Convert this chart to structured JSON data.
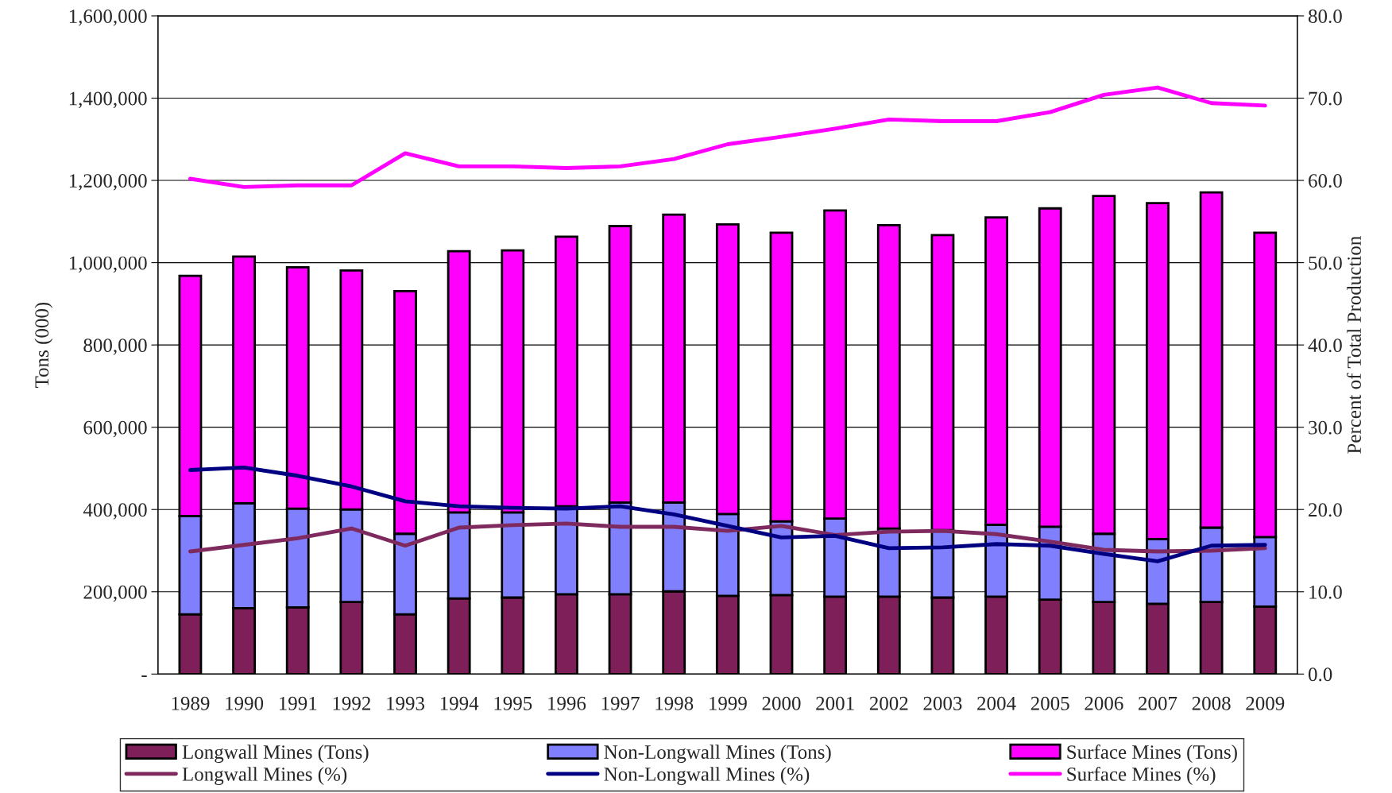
{
  "chart_data": {
    "type": "bar",
    "stacked": true,
    "ylabel": "Tons (000)",
    "y2label": "Percent of Total Production",
    "categories": [
      "1989",
      "1990",
      "1991",
      "1992",
      "1993",
      "1994",
      "1995",
      "1996",
      "1997",
      "1998",
      "1999",
      "2000",
      "2001",
      "2002",
      "2003",
      "2004",
      "2005",
      "2006",
      "2007",
      "2008",
      "2009"
    ],
    "series": [
      {
        "name": "Longwall Mines (Tons)",
        "color": "#7f1f5a",
        "values": [
          145000,
          160000,
          162000,
          175000,
          145000,
          184000,
          186000,
          194000,
          194000,
          201000,
          190000,
          192000,
          188000,
          188000,
          186000,
          188000,
          181000,
          175000,
          171000,
          175000,
          164000
        ]
      },
      {
        "name": "Non-Longwall Mines (Tons)",
        "color": "#8080ff",
        "values": [
          239000,
          255000,
          240000,
          225000,
          196000,
          209000,
          207000,
          214000,
          223000,
          216000,
          199000,
          179000,
          190000,
          166000,
          164000,
          175000,
          177000,
          166000,
          157000,
          181000,
          169000
        ]
      },
      {
        "name": "Surface Mines (Tons)",
        "color": "#ff00ff",
        "values": [
          584000,
          600000,
          587000,
          581000,
          590000,
          635000,
          637000,
          655000,
          672000,
          700000,
          704000,
          702000,
          749000,
          737000,
          717000,
          747000,
          774000,
          821000,
          817000,
          815000,
          740000
        ]
      },
      {
        "name": "Longwall Mines (%)",
        "type": "line",
        "axis": "y2",
        "color": "#7f2a5f",
        "values": [
          14.9,
          15.7,
          16.5,
          17.7,
          15.6,
          17.8,
          18.1,
          18.3,
          17.9,
          17.9,
          17.4,
          18.0,
          16.9,
          17.3,
          17.4,
          17.0,
          16.1,
          15.1,
          14.9,
          15.0,
          15.3
        ]
      },
      {
        "name": "Non-Longwall Mines (%)",
        "type": "line",
        "axis": "y2",
        "color": "#000080",
        "values": [
          24.8,
          25.1,
          24.1,
          22.8,
          21.0,
          20.4,
          20.2,
          20.1,
          20.4,
          19.4,
          18.0,
          16.6,
          16.8,
          15.3,
          15.4,
          15.8,
          15.6,
          14.6,
          13.7,
          15.6,
          15.7
        ]
      },
      {
        "name": "Surface Mines (%)",
        "type": "line",
        "axis": "y2",
        "color": "#ff00ff",
        "values": [
          60.2,
          59.2,
          59.4,
          59.4,
          63.3,
          61.7,
          61.7,
          61.5,
          61.7,
          62.6,
          64.4,
          65.3,
          66.3,
          67.4,
          67.2,
          67.2,
          68.3,
          70.4,
          71.3,
          69.4,
          69.1
        ]
      }
    ],
    "ylim": [
      0,
      1600000
    ],
    "yticks": [
      {
        "value": 0,
        "label": "-"
      },
      {
        "value": 200000,
        "label": "200,000"
      },
      {
        "value": 400000,
        "label": "400,000"
      },
      {
        "value": 600000,
        "label": "600,000"
      },
      {
        "value": 800000,
        "label": "800,000"
      },
      {
        "value": 1000000,
        "label": "1,000,000"
      },
      {
        "value": 1200000,
        "label": "1,200,000"
      },
      {
        "value": 1400000,
        "label": "1,400,000"
      },
      {
        "value": 1600000,
        "label": "1,600,000"
      }
    ],
    "y2lim": [
      0,
      80
    ],
    "y2ticks": [
      {
        "value": 0,
        "label": "0.0"
      },
      {
        "value": 10,
        "label": "10.0"
      },
      {
        "value": 20,
        "label": "20.0"
      },
      {
        "value": 30,
        "label": "30.0"
      },
      {
        "value": 40,
        "label": "40.0"
      },
      {
        "value": 50,
        "label": "50.0"
      },
      {
        "value": 60,
        "label": "60.0"
      },
      {
        "value": 70,
        "label": "70.0"
      },
      {
        "value": 80,
        "label": "80.0"
      }
    ],
    "grid": "y",
    "legend": "bottom",
    "line_style": "solid",
    "marker": "none"
  }
}
